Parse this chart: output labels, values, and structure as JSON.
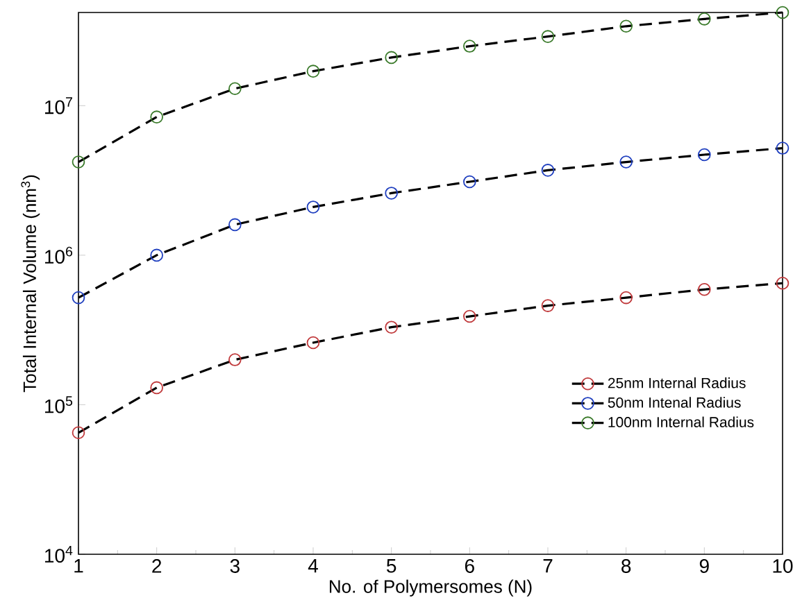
{
  "chart_data": {
    "type": "line",
    "xlabel": "No. of Polymersomes (N)",
    "ylabel": "Total Internal Volume (nm$^{3}$)",
    "x": [
      1,
      2,
      3,
      4,
      5,
      6,
      7,
      8,
      9,
      10
    ],
    "series": [
      {
        "name": "25nm Internal Radius",
        "color": "#c0393b",
        "values": [
          65000,
          130000,
          200000,
          260000,
          330000,
          390000,
          460000,
          520000,
          590000,
          650000
        ]
      },
      {
        "name": "50nm Intenal Radius",
        "color": "#1f3fbf",
        "values": [
          520000,
          1000000,
          1600000,
          2100000,
          2600000,
          3100000,
          3700000,
          4200000,
          4700000,
          5200000
        ]
      },
      {
        "name": "100nm Internal Radius",
        "color": "#3a7a2a",
        "values": [
          4200000,
          8400000,
          13000000,
          17000000,
          21000000,
          25000000,
          29000000,
          34000000,
          38000000,
          42000000
        ]
      }
    ],
    "xlim": [
      1,
      10
    ],
    "xticks": [
      1,
      2,
      3,
      4,
      5,
      6,
      7,
      8,
      9,
      10
    ],
    "ylim": [
      10000,
      42000000
    ],
    "yticks": [
      {
        "value": 10000,
        "label": "10$^{4}$"
      },
      {
        "value": 100000,
        "label": "10$^{5}$"
      },
      {
        "value": 1000000,
        "label": "10$^{6}$"
      },
      {
        "value": 10000000,
        "label": "10$^{7}$"
      }
    ],
    "log": true,
    "grid": false,
    "legend": "bottom right",
    "marker": "circle",
    "line_style": "dashed"
  }
}
